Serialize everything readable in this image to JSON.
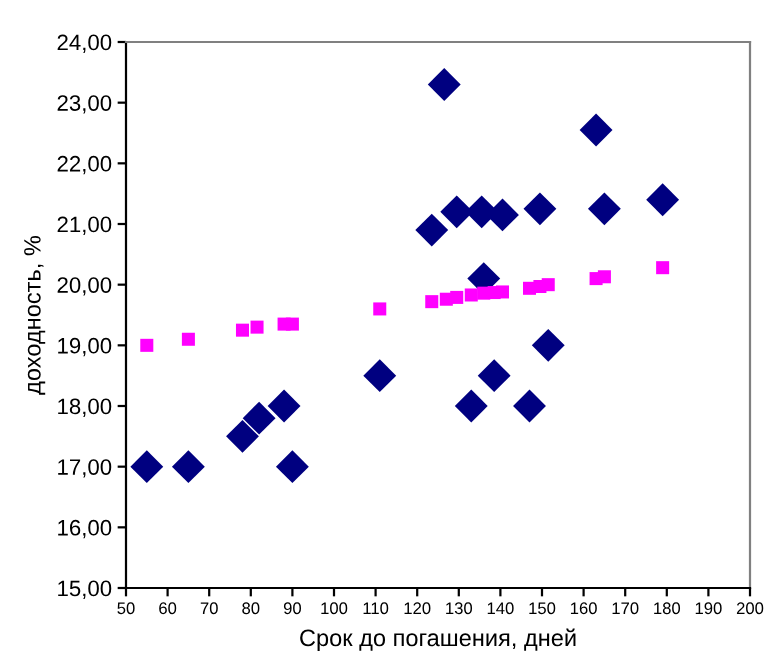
{
  "chart_data": {
    "type": "scatter",
    "xlabel": "Срок до погашения, дней",
    "ylabel": "доходность, %",
    "xlim": [
      50,
      200
    ],
    "xticks": [
      50,
      60,
      70,
      80,
      90,
      100,
      110,
      120,
      130,
      140,
      150,
      160,
      170,
      180,
      190,
      200
    ],
    "ylim": [
      15,
      24
    ],
    "yticks": [
      {
        "value": 15,
        "label": "15,00"
      },
      {
        "value": 16,
        "label": "16,00"
      },
      {
        "value": 17,
        "label": "17,00"
      },
      {
        "value": 18,
        "label": "18,00"
      },
      {
        "value": 19,
        "label": "19,00"
      },
      {
        "value": 20,
        "label": "20,00"
      },
      {
        "value": 21,
        "label": "21,00"
      },
      {
        "value": 22,
        "label": "22,00"
      },
      {
        "value": 23,
        "label": "23,00"
      },
      {
        "value": 24,
        "label": "24,00"
      }
    ],
    "grid": false,
    "legend": false,
    "series": [
      {
        "color": "#000080",
        "marker": "diamond",
        "x": [
          55,
          65,
          78,
          82,
          88,
          90,
          111,
          123.5,
          126.5,
          129.5,
          135.5,
          136,
          140.5,
          133,
          138.5,
          147,
          149.5,
          151.5,
          163,
          165,
          179
        ],
        "values": [
          17,
          17,
          17.5,
          17.8,
          18,
          17,
          18.5,
          20.9,
          23.3,
          21.2,
          21.2,
          20.1,
          21.15,
          18,
          18.5,
          18,
          21.25,
          19,
          22.55,
          21.25,
          21.4
        ]
      },
      {
        "color": "#ff00ff",
        "marker": "square",
        "x": [
          55,
          65,
          78,
          81.5,
          88,
          90,
          111,
          123.5,
          127,
          129.5,
          133,
          136,
          138.5,
          140.5,
          147,
          149.5,
          151.5,
          163,
          165,
          179
        ],
        "values": [
          19,
          19.1,
          19.25,
          19.3,
          19.35,
          19.35,
          19.6,
          19.72,
          19.76,
          19.79,
          19.83,
          19.86,
          19.87,
          19.88,
          19.94,
          19.97,
          20,
          20.1,
          20.13,
          20.28
        ]
      }
    ]
  }
}
